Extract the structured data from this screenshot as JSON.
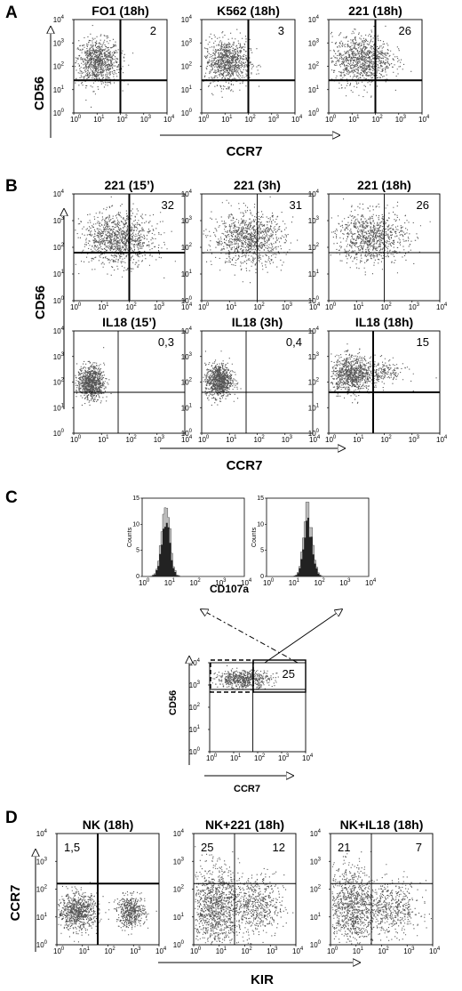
{
  "figure": {
    "panels": {
      "A": {
        "letter": "A",
        "xaxis": "CCR7",
        "yaxis": "CD56",
        "plots": [
          {
            "title": "FO1 (18h)",
            "value": "2"
          },
          {
            "title": "K562 (18h)",
            "value": "3"
          },
          {
            "title": "221 (18h)",
            "value": "26"
          }
        ]
      },
      "B": {
        "letter": "B",
        "xaxis": "CCR7",
        "yaxis": "CD56",
        "plots": [
          {
            "title": "221 (15’)",
            "value": "32"
          },
          {
            "title": "221 (3h)",
            "value": "31"
          },
          {
            "title": "221 (18h)",
            "value": "26"
          },
          {
            "title": "IL18 (15’)",
            "value": "0,3"
          },
          {
            "title": "IL18 (3h)",
            "value": "0,4"
          },
          {
            "title": "IL18 (18h)",
            "value": "15"
          }
        ]
      },
      "C": {
        "letter": "C",
        "hist_xlabel": "CD107a",
        "hist_ylabel": "Counts",
        "hist_yticks": [
          "0",
          "5",
          "10",
          "15"
        ],
        "scatter_xaxis": "CCR7",
        "scatter_yaxis": "CD56",
        "scatter_value": "25"
      },
      "D": {
        "letter": "D",
        "xaxis": "KIR",
        "yaxis": "CCR7",
        "plots": [
          {
            "title": "NK (18h)",
            "ul": "1,5",
            "ur": ""
          },
          {
            "title": "NK+221 (18h)",
            "ul": "25",
            "ur": "12"
          },
          {
            "title": "NK+IL18 (18h)",
            "ul": "21",
            "ur": "7"
          }
        ]
      }
    },
    "tick_base": "10",
    "tick_exponents": [
      "0",
      "1",
      "2",
      "3",
      "4"
    ]
  }
}
